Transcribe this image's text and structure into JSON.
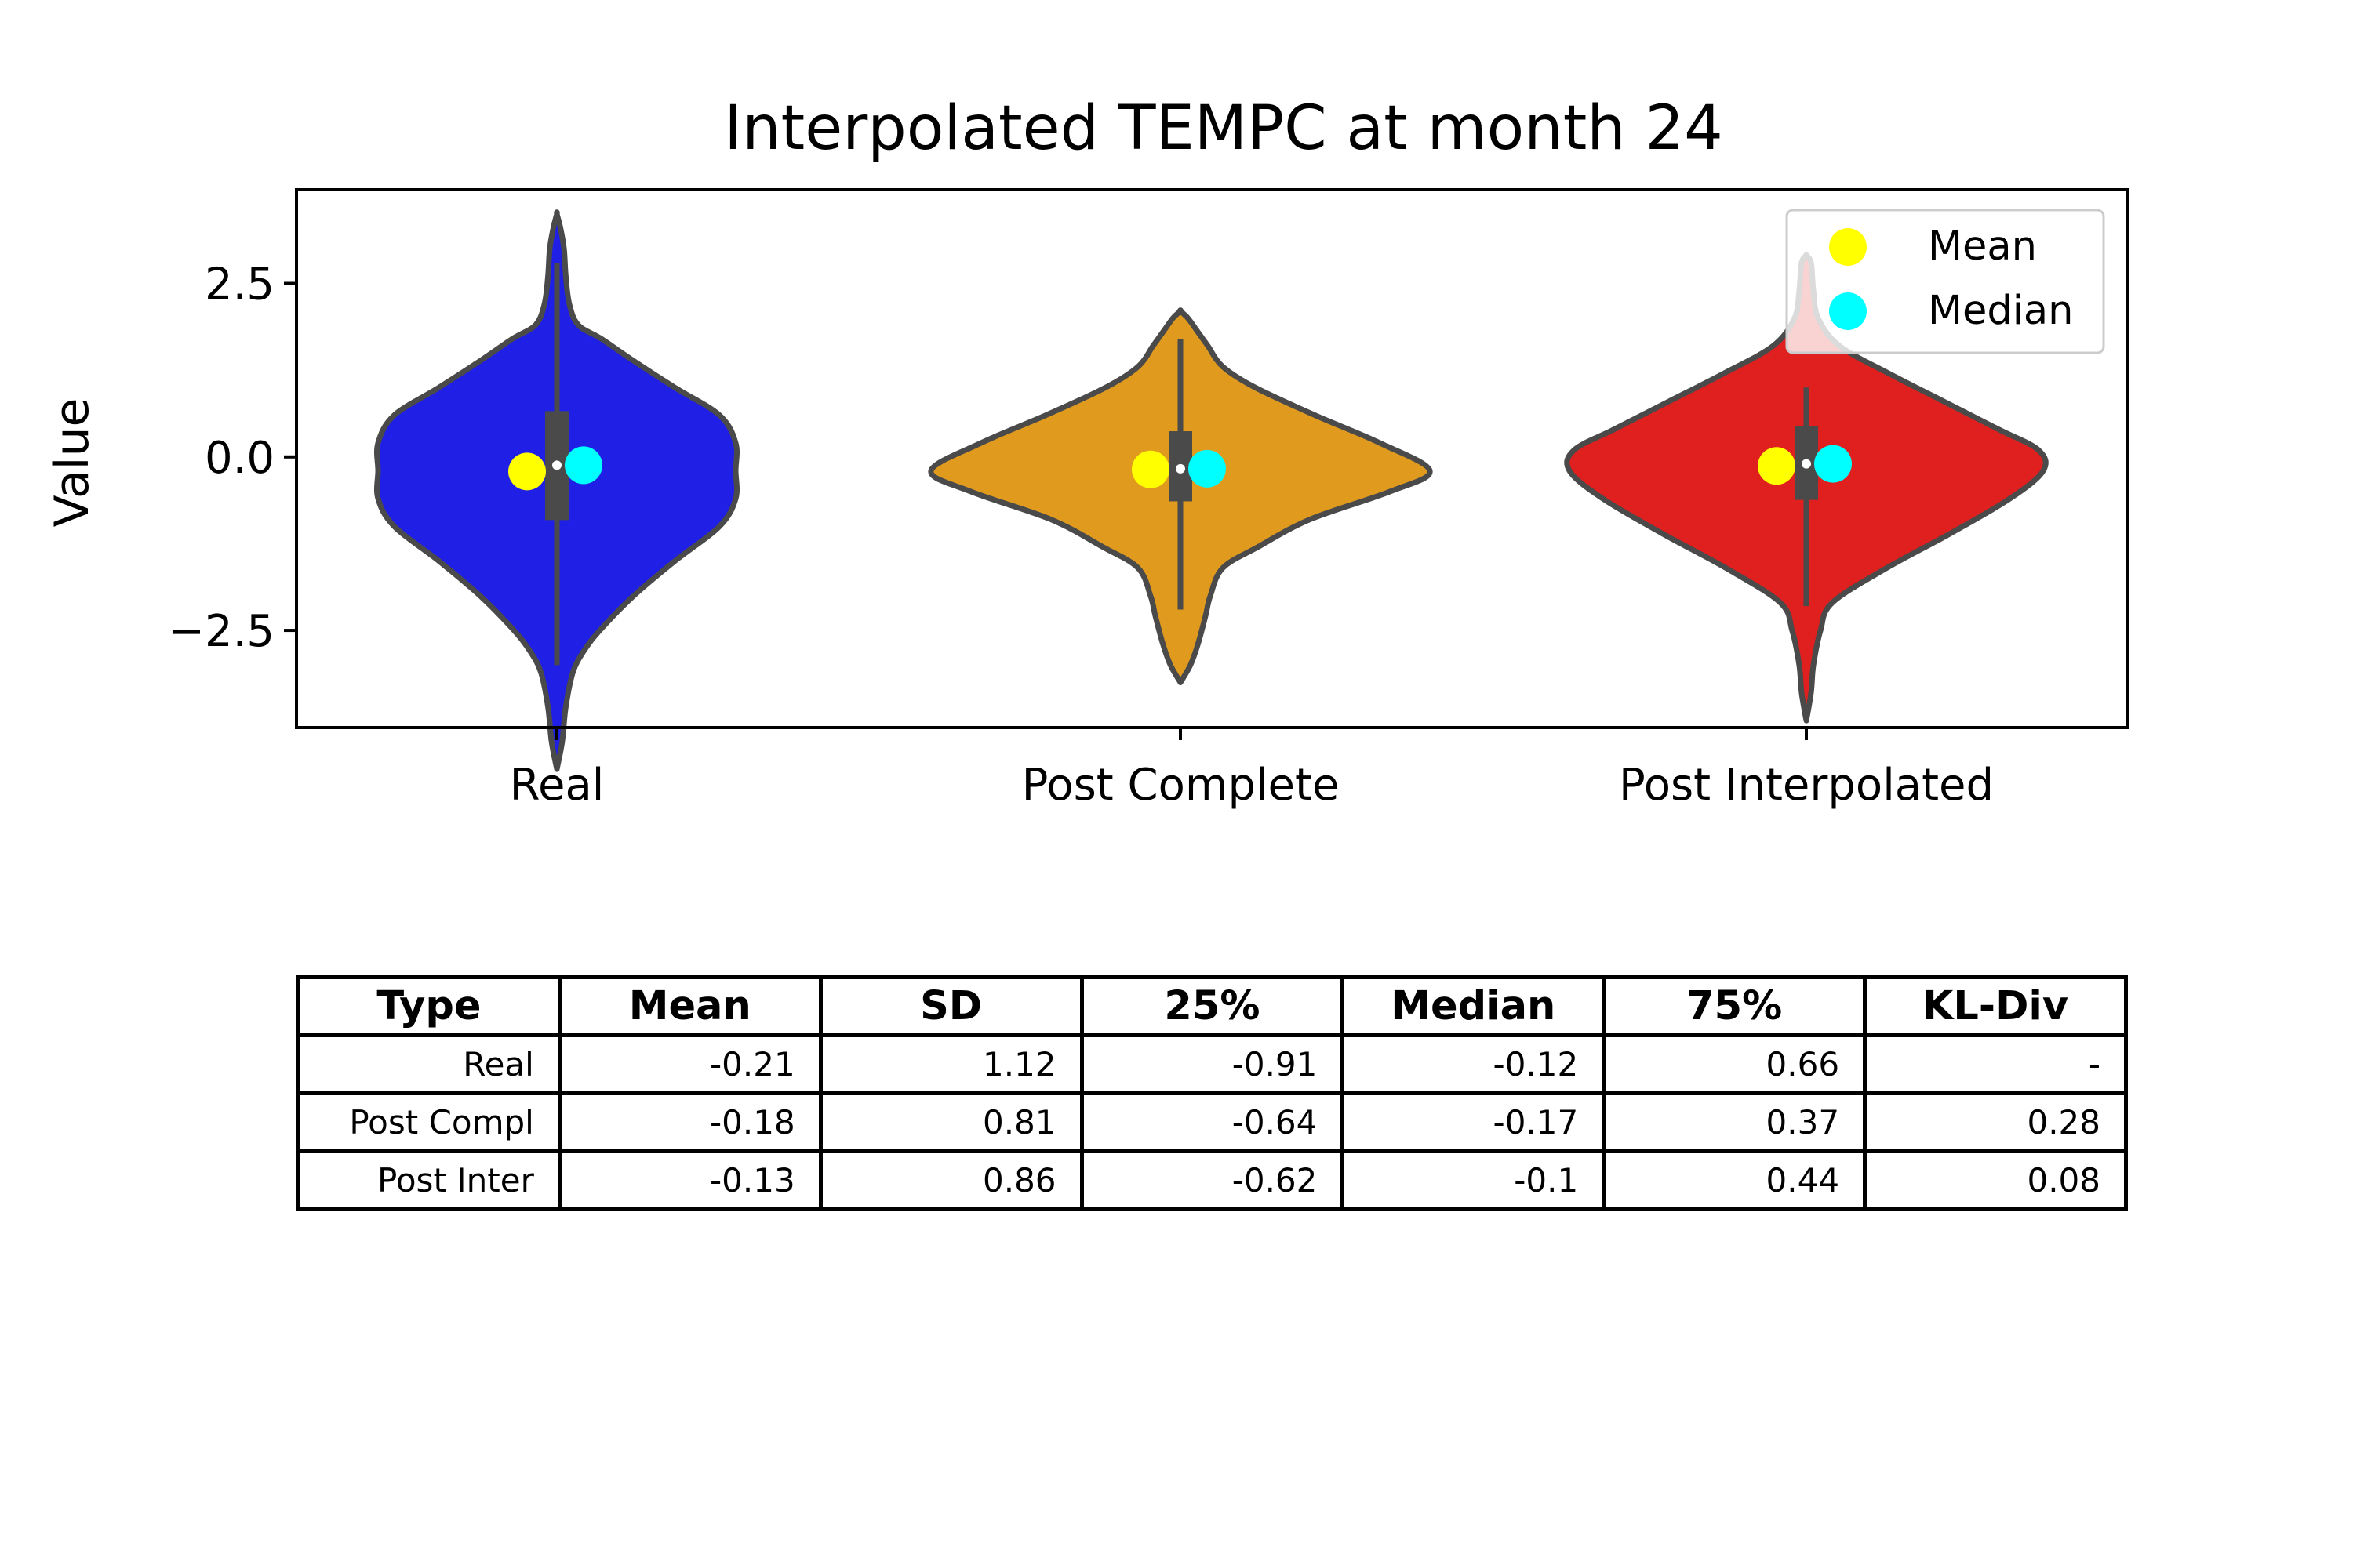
{
  "chart_data": {
    "type": "violin",
    "title": "Interpolated TEMPC at month 24",
    "xlabel": "",
    "ylabel": "Value",
    "ylim": [
      -3.9,
      3.85
    ],
    "yticks": [
      {
        "value": 2.5,
        "label": "2.5"
      },
      {
        "value": 0.0,
        "label": "0.0"
      },
      {
        "value": -2.5,
        "label": "−2.5"
      }
    ],
    "categories": [
      "Real",
      "Post Complete",
      "Post Interpolated"
    ],
    "colors": [
      "#1f1fe6",
      "#e09b1f",
      "#e01f1f"
    ],
    "box_color": "#4a4a4a",
    "distributions": [
      {
        "name": "Real",
        "mean": -0.21,
        "median": -0.12,
        "q1": -0.91,
        "q3": 0.66,
        "whisker_low": -3.0,
        "whisker_high": 2.8,
        "profile": [
          [
            -4.5,
            0.0
          ],
          [
            -4.1,
            0.03
          ],
          [
            -3.6,
            0.05
          ],
          [
            -3.1,
            0.09
          ],
          [
            -2.8,
            0.15
          ],
          [
            -2.5,
            0.24
          ],
          [
            -2.0,
            0.43
          ],
          [
            -1.5,
            0.66
          ],
          [
            -1.0,
            0.91
          ],
          [
            -0.6,
            1.0
          ],
          [
            -0.2,
            1.0
          ],
          [
            0.2,
            1.0
          ],
          [
            0.6,
            0.91
          ],
          [
            1.0,
            0.66
          ],
          [
            1.4,
            0.42
          ],
          [
            1.7,
            0.25
          ],
          [
            1.9,
            0.12
          ],
          [
            2.2,
            0.07
          ],
          [
            2.6,
            0.05
          ],
          [
            3.0,
            0.04
          ],
          [
            3.3,
            0.02
          ],
          [
            3.5,
            0.0
          ]
        ]
      },
      {
        "name": "Post Complete",
        "mean": -0.18,
        "median": -0.17,
        "q1": -0.64,
        "q3": 0.37,
        "whisker_low": -2.2,
        "whisker_high": 1.7,
        "profile": [
          [
            -3.25,
            0.0
          ],
          [
            -3.0,
            0.04
          ],
          [
            -2.7,
            0.07
          ],
          [
            -2.3,
            0.1
          ],
          [
            -2.0,
            0.12
          ],
          [
            -1.6,
            0.17
          ],
          [
            -1.3,
            0.31
          ],
          [
            -0.9,
            0.52
          ],
          [
            -0.5,
            0.84
          ],
          [
            -0.2,
            1.0
          ],
          [
            0.2,
            0.8
          ],
          [
            0.6,
            0.54
          ],
          [
            1.0,
            0.3
          ],
          [
            1.3,
            0.17
          ],
          [
            1.6,
            0.11
          ],
          [
            1.8,
            0.07
          ],
          [
            2.0,
            0.03
          ],
          [
            2.1,
            0.0
          ]
        ]
      },
      {
        "name": "Post Interpolated",
        "mean": -0.13,
        "median": -0.1,
        "q1": -0.62,
        "q3": 0.44,
        "whisker_low": -2.15,
        "whisker_high": 1.0,
        "profile": [
          [
            -3.8,
            0.0
          ],
          [
            -3.4,
            0.02
          ],
          [
            -3.0,
            0.03
          ],
          [
            -2.5,
            0.06
          ],
          [
            -2.1,
            0.11
          ],
          [
            -1.6,
            0.34
          ],
          [
            -1.1,
            0.61
          ],
          [
            -0.6,
            0.86
          ],
          [
            -0.2,
            1.0
          ],
          [
            0.1,
            0.98
          ],
          [
            0.4,
            0.81
          ],
          [
            0.8,
            0.58
          ],
          [
            1.2,
            0.35
          ],
          [
            1.6,
            0.14
          ],
          [
            2.0,
            0.05
          ],
          [
            2.4,
            0.03
          ],
          [
            2.8,
            0.02
          ],
          [
            2.9,
            0.0
          ]
        ]
      }
    ],
    "legend": {
      "placement": "top-right",
      "entries": [
        {
          "label": "Mean",
          "color": "#ffff00"
        },
        {
          "label": "Median",
          "color": "#00ffff"
        }
      ]
    },
    "grid": false
  },
  "table": {
    "headers": [
      "Type",
      "Mean",
      "SD",
      "25%",
      "Median",
      "75%",
      "KL-Div"
    ],
    "rows": [
      [
        "Real",
        "-0.21",
        "1.12",
        "-0.91",
        "-0.12",
        "0.66",
        "-"
      ],
      [
        "Post Compl",
        "-0.18",
        "0.81",
        "-0.64",
        "-0.17",
        "0.37",
        "0.28"
      ],
      [
        "Post Inter",
        "-0.13",
        "0.86",
        "-0.62",
        "-0.1",
        "0.44",
        "0.08"
      ]
    ]
  }
}
